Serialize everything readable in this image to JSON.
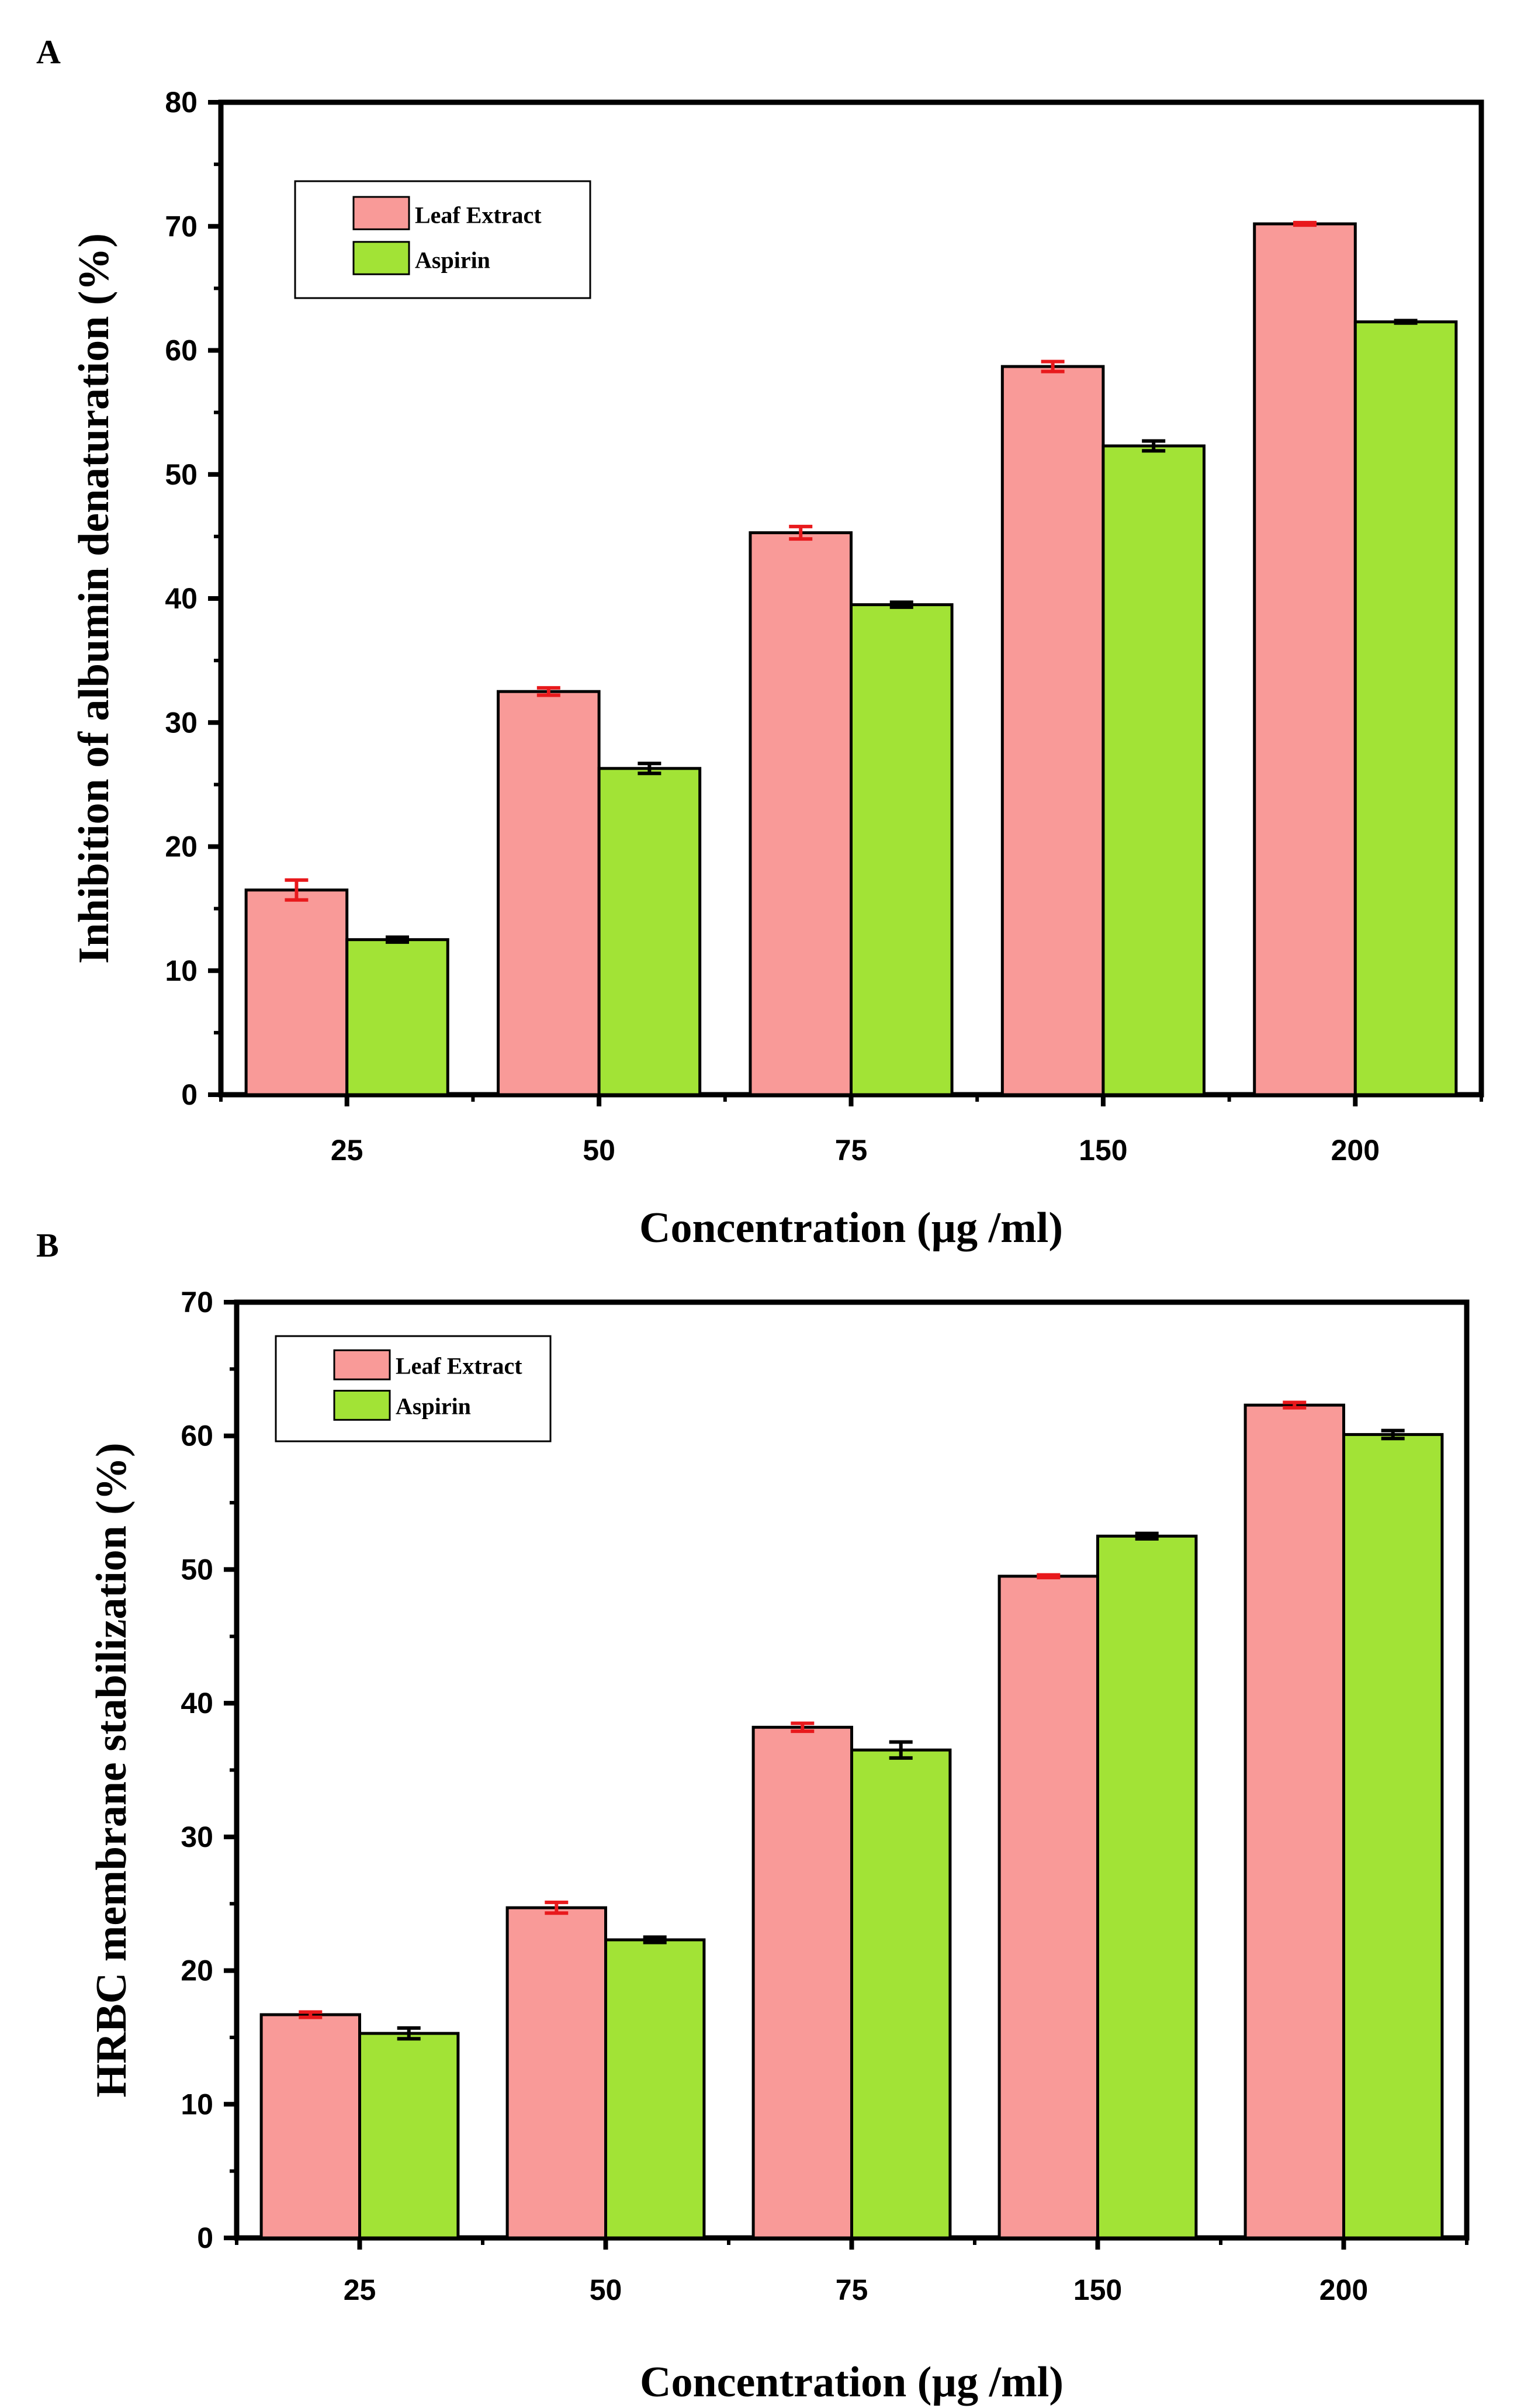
{
  "chart_data": [
    {
      "panel": "A",
      "type": "bar",
      "categories": [
        "25",
        "50",
        "75",
        "150",
        "200"
      ],
      "xlabel": "Concentration (µg /ml)",
      "ylabel": "Inhibition of albumin denaturation (%)",
      "ylim": [
        0,
        80
      ],
      "yticks": [
        0,
        10,
        20,
        30,
        40,
        50,
        60,
        70,
        80
      ],
      "legend_position": "top-left",
      "series": [
        {
          "name": "Leaf Extract",
          "color": "#f99a98",
          "error_color": "#e8191c",
          "values": [
            16.5,
            32.5,
            45.3,
            58.7,
            70.2
          ],
          "errors": [
            0.8,
            0.3,
            0.5,
            0.4,
            0.1
          ]
        },
        {
          "name": "Aspirin",
          "color": "#a2e336",
          "error_color": "#000000",
          "values": [
            12.5,
            26.3,
            39.5,
            52.3,
            62.3
          ],
          "errors": [
            0.2,
            0.4,
            0.2,
            0.4,
            0.1
          ]
        }
      ]
    },
    {
      "panel": "B",
      "type": "bar",
      "categories": [
        "25",
        "50",
        "75",
        "150",
        "200"
      ],
      "xlabel": "Concentration (µg /ml)",
      "ylabel": "HRBC membrane stabilization (%)",
      "ylim": [
        0,
        70
      ],
      "yticks": [
        0,
        10,
        20,
        30,
        40,
        50,
        60,
        70
      ],
      "legend_position": "top-left",
      "series": [
        {
          "name": "Leaf Extract",
          "color": "#f99a98",
          "error_color": "#e8191c",
          "values": [
            16.7,
            24.7,
            38.2,
            49.5,
            62.3
          ],
          "errors": [
            0.2,
            0.4,
            0.3,
            0.1,
            0.2
          ]
        },
        {
          "name": "Aspirin",
          "color": "#a2e336",
          "error_color": "#000000",
          "values": [
            15.3,
            22.3,
            36.5,
            52.5,
            60.1
          ],
          "errors": [
            0.4,
            0.2,
            0.6,
            0.2,
            0.3
          ]
        }
      ]
    }
  ]
}
